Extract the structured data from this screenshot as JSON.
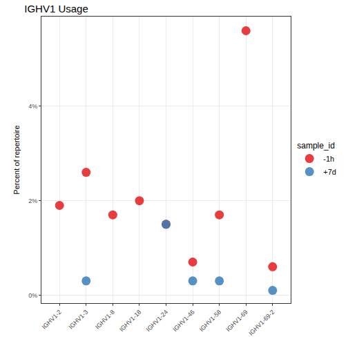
{
  "chart_data": {
    "type": "scatter",
    "title": "IGHV1 Usage",
    "y_label": "Percent of repertoire",
    "legend_title": "sample_id",
    "legend": "right",
    "grid": true,
    "marker": "circle",
    "categories": [
      "IGHV1-2",
      "IGHV1-3",
      "IGHV1-8",
      "IGHV1-18",
      "IGHV1-24",
      "IGHV1-46",
      "IGHV1-58",
      "IGHV1-69",
      "IGHV1-69-2"
    ],
    "series": [
      {
        "name": "-1h",
        "color": "#E41A1C",
        "values": [
          1.9,
          2.6,
          1.7,
          2.0,
          1.5,
          0.7,
          1.7,
          5.6,
          0.6
        ]
      },
      {
        "name": "+7d",
        "color": "#377EB8",
        "values": [
          null,
          0.3,
          null,
          null,
          1.5,
          0.3,
          0.3,
          null,
          0.1
        ]
      }
    ],
    "ylim": [
      -0.17,
      5.9
    ],
    "yticks": [
      {
        "value": 0,
        "label": "0%"
      },
      {
        "value": 2,
        "label": "2%"
      },
      {
        "value": 4,
        "label": "4%"
      }
    ]
  }
}
